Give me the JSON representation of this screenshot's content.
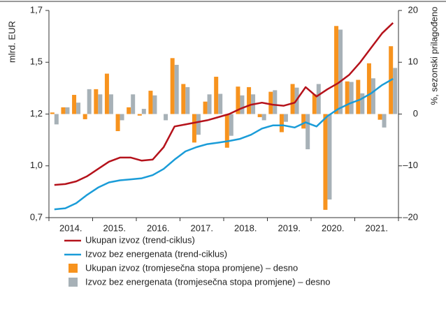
{
  "chart_data": {
    "type": "bar-line",
    "y_label": "mlrd. EUR",
    "y2_label": "%, sezonski prilagođeno",
    "categories": [
      null,
      "2014.",
      null,
      null,
      null,
      "2015.",
      null,
      null,
      null,
      "2016.",
      null,
      null,
      null,
      "2017.",
      null,
      null,
      null,
      "2018.",
      null,
      null,
      null,
      "2019.",
      null,
      null,
      null,
      "2020.",
      null,
      null,
      null,
      "2021.",
      null,
      null
    ],
    "ylim": [
      0.7,
      1.7
    ],
    "yticks": [
      {
        "value": 0.7,
        "label": "0,7"
      },
      {
        "value": 0.95,
        "label": "1,0"
      },
      {
        "value": 1.2,
        "label": "1,2"
      },
      {
        "value": 1.45,
        "label": "1,5"
      },
      {
        "value": 1.7,
        "label": "1,7"
      }
    ],
    "y2lim": [
      -20,
      20
    ],
    "y2ticks": [
      {
        "value": -20,
        "label": "–20"
      },
      {
        "value": -10,
        "label": "–10"
      },
      0,
      10,
      20
    ],
    "series": [
      {
        "name": "Ukupan izvoz (trend-ciklus)",
        "kind": "line",
        "color": "#b5121b",
        "values": [
          0.858,
          0.862,
          0.875,
          0.9,
          0.935,
          0.97,
          0.99,
          0.99,
          0.975,
          0.98,
          1.04,
          1.14,
          1.15,
          1.16,
          1.17,
          1.185,
          1.2,
          1.225,
          1.245,
          1.255,
          1.245,
          1.24,
          1.255,
          1.33,
          1.285,
          1.32,
          1.35,
          1.39,
          1.45,
          1.52,
          1.59,
          1.64
        ]
      },
      {
        "name": "Izvoz bez energenata (trend-ciklus)",
        "kind": "line",
        "color": "#1a9cd8",
        "values": [
          0.74,
          0.745,
          0.77,
          0.81,
          0.845,
          0.87,
          0.88,
          0.885,
          0.89,
          0.905,
          0.935,
          0.98,
          1.02,
          1.04,
          1.055,
          1.062,
          1.07,
          1.08,
          1.1,
          1.13,
          1.145,
          1.145,
          1.135,
          1.16,
          1.14,
          1.19,
          1.225,
          1.25,
          1.27,
          1.3,
          1.34,
          1.37
        ]
      },
      {
        "name": "Ukupan izvoz (tromjesečna stopa promjene) – desno",
        "kind": "bar",
        "axis": "y2",
        "color": "#f7931e",
        "values": [
          0.3,
          1.3,
          3.7,
          -1,
          4.8,
          7.8,
          -3.3,
          1.3,
          -0.3,
          4.5,
          0,
          10.8,
          5.8,
          -5.5,
          2.4,
          7.2,
          -6.5,
          5.3,
          5.2,
          -0.6,
          4.3,
          -3.5,
          5.8,
          -2.8,
          3.8,
          -18.5,
          17,
          6.3,
          6.6,
          9.8,
          -1.1,
          13.1
        ]
      },
      {
        "name": "Izvoz bez energenata (tromjesečna stopa promjene) – desno",
        "kind": "bar",
        "axis": "y2",
        "color": "#a7b1b7",
        "values": [
          -2,
          1.3,
          2.2,
          4.8,
          3.8,
          3.8,
          -1.2,
          3.8,
          1,
          3.6,
          -1.2,
          9.5,
          5.2,
          -4,
          3.8,
          3.9,
          -4.2,
          3.6,
          3.8,
          -1.2,
          4.6,
          -1.5,
          5.1,
          -6.8,
          5.8,
          -16.5,
          16.3,
          6.2,
          4,
          6.9,
          -2.6,
          8.9
        ]
      }
    ]
  }
}
